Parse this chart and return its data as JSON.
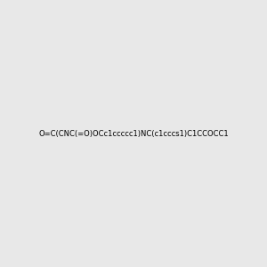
{
  "smiles": "O=C(CNC(=O)OCc1ccccc1)NC(c1cccs1)C1CCOCC1",
  "image_size": 300,
  "background_color": "#e8e8e8",
  "bond_color": "#1a1a1a",
  "atom_colors": {
    "O": "#ff0000",
    "N": "#0000ff",
    "S": "#ccaa00",
    "C": "#1a1a1a",
    "H": "#1a1a1a"
  }
}
